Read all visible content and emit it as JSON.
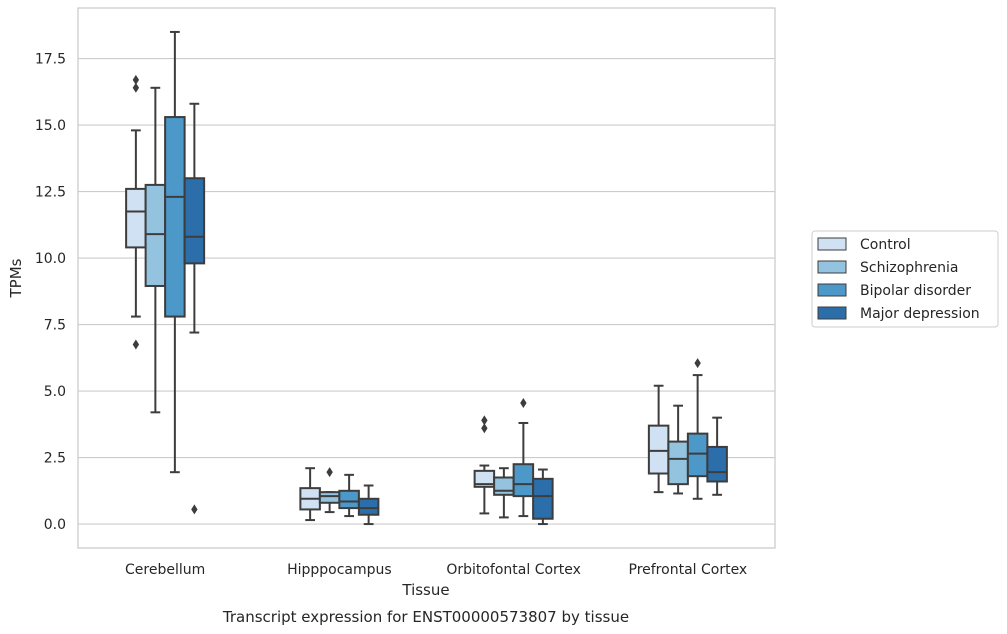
{
  "chart_data": {
    "type": "boxplot",
    "title": "",
    "caption": "Transcript expression for ENST00000573807 by tissue",
    "xlabel": "Tissue",
    "ylabel": "TPMs",
    "ylim": [
      -0.9,
      19.4
    ],
    "yticks": [
      0.0,
      2.5,
      5.0,
      7.5,
      10.0,
      12.5,
      15.0,
      17.5
    ],
    "ytick_labels": [
      "0.0",
      "2.5",
      "5.0",
      "7.5",
      "10.0",
      "12.5",
      "15.0",
      "17.5"
    ],
    "grid": "horizontal",
    "legend_position": "right",
    "categories": [
      "Cerebellum",
      "Hipppocampus",
      "Orbitofontal Cortex",
      "Prefrontal Cortex"
    ],
    "series": [
      {
        "name": "Control",
        "color": "#cfe1f2",
        "boxes": [
          {
            "whislo": 7.8,
            "q1": 10.4,
            "med": 11.75,
            "q3": 12.6,
            "whishi": 14.8,
            "fliers": [
              16.7,
              16.4,
              6.75
            ]
          },
          {
            "whislo": 0.15,
            "q1": 0.55,
            "med": 0.95,
            "q3": 1.35,
            "whishi": 2.1,
            "fliers": []
          },
          {
            "whislo": 0.4,
            "q1": 1.4,
            "med": 1.5,
            "q3": 2.0,
            "whishi": 2.2,
            "fliers": [
              3.9,
              3.6
            ]
          },
          {
            "whislo": 1.2,
            "q1": 1.9,
            "med": 2.75,
            "q3": 3.7,
            "whishi": 5.2,
            "fliers": []
          }
        ]
      },
      {
        "name": "Schizophrenia",
        "color": "#93c3df",
        "boxes": [
          {
            "whislo": 4.2,
            "q1": 8.95,
            "med": 10.9,
            "q3": 12.75,
            "whishi": 16.4,
            "fliers": []
          },
          {
            "whislo": 0.45,
            "q1": 0.8,
            "med": 1.05,
            "q3": 1.2,
            "whishi": 1.2,
            "fliers": [
              1.95
            ]
          },
          {
            "whislo": 0.25,
            "q1": 1.1,
            "med": 1.25,
            "q3": 1.75,
            "whishi": 2.1,
            "fliers": []
          },
          {
            "whislo": 1.15,
            "q1": 1.5,
            "med": 2.45,
            "q3": 3.1,
            "whishi": 4.45,
            "fliers": []
          }
        ]
      },
      {
        "name": "Bipolar disorder",
        "color": "#4b98c9",
        "boxes": [
          {
            "whislo": 1.95,
            "q1": 7.8,
            "med": 12.3,
            "q3": 15.3,
            "whishi": 18.5,
            "fliers": []
          },
          {
            "whislo": 0.3,
            "q1": 0.6,
            "med": 0.85,
            "q3": 1.25,
            "whishi": 1.85,
            "fliers": []
          },
          {
            "whislo": 0.3,
            "q1": 1.05,
            "med": 1.5,
            "q3": 2.25,
            "whishi": 3.8,
            "fliers": [
              4.55
            ]
          },
          {
            "whislo": 0.95,
            "q1": 1.8,
            "med": 2.65,
            "q3": 3.4,
            "whishi": 5.6,
            "fliers": [
              6.05
            ]
          }
        ]
      },
      {
        "name": "Major depression",
        "color": "#2b6ea9",
        "boxes": [
          {
            "whislo": 7.2,
            "q1": 9.8,
            "med": 10.8,
            "q3": 13.0,
            "whishi": 15.8,
            "fliers": [
              0.55
            ]
          },
          {
            "whislo": 0.0,
            "q1": 0.35,
            "med": 0.6,
            "q3": 0.95,
            "whishi": 1.45,
            "fliers": []
          },
          {
            "whislo": 0.0,
            "q1": 0.2,
            "med": 1.05,
            "q3": 1.7,
            "whishi": 2.05,
            "fliers": []
          },
          {
            "whislo": 1.1,
            "q1": 1.6,
            "med": 1.95,
            "q3": 2.9,
            "whishi": 4.0,
            "fliers": []
          }
        ]
      }
    ]
  }
}
